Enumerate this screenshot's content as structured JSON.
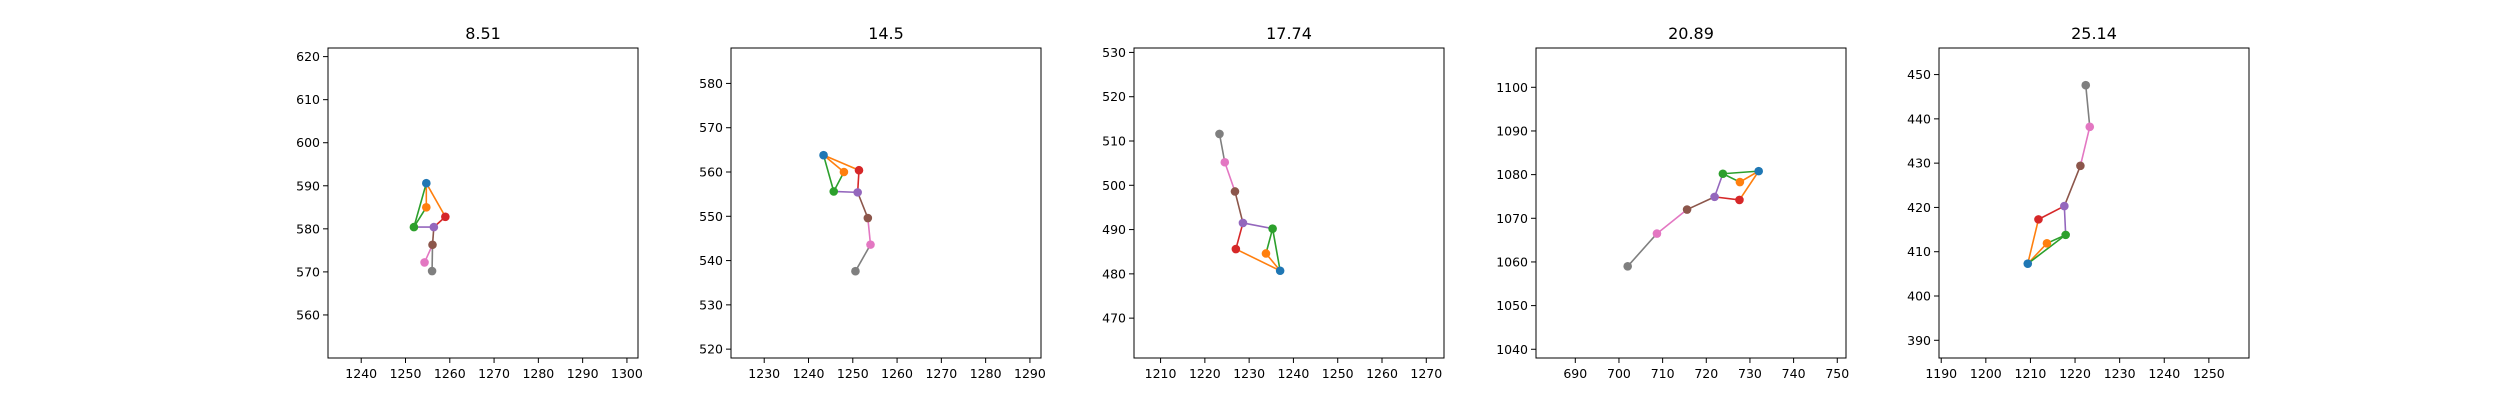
{
  "chart_data": [
    {
      "type": "scatter",
      "title": "8.51",
      "xlim": [
        1232.5,
        1302.5
      ],
      "ylim": [
        550,
        622
      ],
      "xticks": [
        1240,
        1250,
        1260,
        1270,
        1280,
        1290,
        1300
      ],
      "yticks": [
        560,
        570,
        580,
        590,
        600,
        610,
        620
      ],
      "points": [
        {
          "x": 1254.7,
          "y": 590.6,
          "color": "#1f77b4"
        },
        {
          "x": 1254.7,
          "y": 585.0,
          "color": "#ff7f0e"
        },
        {
          "x": 1251.9,
          "y": 580.4,
          "color": "#2ca02c"
        },
        {
          "x": 1259.0,
          "y": 582.8,
          "color": "#d62728"
        },
        {
          "x": 1256.4,
          "y": 580.4,
          "color": "#9467bd"
        },
        {
          "x": 1256.1,
          "y": 576.3,
          "color": "#8c564b"
        },
        {
          "x": 1254.3,
          "y": 572.2,
          "color": "#e377c2"
        },
        {
          "x": 1256.0,
          "y": 570.2,
          "color": "#7f7f7f"
        }
      ],
      "segments": [
        {
          "from": 0,
          "to": 1,
          "color": "#ff7f0e"
        },
        {
          "from": 0,
          "to": 2,
          "color": "#2ca02c"
        },
        {
          "from": 0,
          "to": 3,
          "color": "#ff7f0e"
        },
        {
          "from": 1,
          "to": 2,
          "color": "#2ca02c"
        },
        {
          "from": 2,
          "to": 4,
          "color": "#9467bd"
        },
        {
          "from": 3,
          "to": 4,
          "color": "#d62728"
        },
        {
          "from": 4,
          "to": 5,
          "color": "#8c564b"
        },
        {
          "from": 5,
          "to": 6,
          "color": "#e377c2"
        },
        {
          "from": 5,
          "to": 7,
          "color": "#7f7f7f"
        }
      ]
    },
    {
      "type": "scatter",
      "title": "14.5",
      "xlim": [
        1222.5,
        1292.5
      ],
      "ylim": [
        518,
        588
      ],
      "xticks": [
        1230,
        1240,
        1250,
        1260,
        1270,
        1280,
        1290
      ],
      "yticks": [
        520,
        530,
        540,
        550,
        560,
        570,
        580
      ],
      "points": [
        {
          "x": 1243.4,
          "y": 563.8,
          "color": "#1f77b4"
        },
        {
          "x": 1248.0,
          "y": 560.0,
          "color": "#ff7f0e"
        },
        {
          "x": 1245.7,
          "y": 555.6,
          "color": "#2ca02c"
        },
        {
          "x": 1251.4,
          "y": 560.4,
          "color": "#d62728"
        },
        {
          "x": 1251.1,
          "y": 555.4,
          "color": "#9467bd"
        },
        {
          "x": 1253.4,
          "y": 549.6,
          "color": "#8c564b"
        },
        {
          "x": 1254.0,
          "y": 543.6,
          "color": "#e377c2"
        },
        {
          "x": 1250.6,
          "y": 537.6,
          "color": "#7f7f7f"
        }
      ],
      "segments": [
        {
          "from": 0,
          "to": 1,
          "color": "#ff7f0e"
        },
        {
          "from": 0,
          "to": 2,
          "color": "#2ca02c"
        },
        {
          "from": 0,
          "to": 3,
          "color": "#ff7f0e"
        },
        {
          "from": 1,
          "to": 2,
          "color": "#2ca02c"
        },
        {
          "from": 2,
          "to": 4,
          "color": "#9467bd"
        },
        {
          "from": 3,
          "to": 4,
          "color": "#d62728"
        },
        {
          "from": 4,
          "to": 5,
          "color": "#8c564b"
        },
        {
          "from": 5,
          "to": 6,
          "color": "#e377c2"
        },
        {
          "from": 6,
          "to": 7,
          "color": "#7f7f7f"
        }
      ]
    },
    {
      "type": "scatter",
      "title": "17.74",
      "xlim": [
        1204,
        1274
      ],
      "ylim": [
        461,
        531
      ],
      "xticks": [
        1210,
        1220,
        1230,
        1240,
        1250,
        1260,
        1270
      ],
      "yticks": [
        470,
        480,
        490,
        500,
        510,
        520,
        530
      ],
      "points": [
        {
          "x": 1237.0,
          "y": 480.7,
          "color": "#1f77b4"
        },
        {
          "x": 1233.8,
          "y": 484.6,
          "color": "#ff7f0e"
        },
        {
          "x": 1235.3,
          "y": 490.2,
          "color": "#2ca02c"
        },
        {
          "x": 1227.0,
          "y": 485.6,
          "color": "#d62728"
        },
        {
          "x": 1228.6,
          "y": 491.5,
          "color": "#9467bd"
        },
        {
          "x": 1226.8,
          "y": 498.6,
          "color": "#8c564b"
        },
        {
          "x": 1224.5,
          "y": 505.2,
          "color": "#e377c2"
        },
        {
          "x": 1223.3,
          "y": 511.6,
          "color": "#7f7f7f"
        }
      ],
      "segments": [
        {
          "from": 0,
          "to": 1,
          "color": "#ff7f0e"
        },
        {
          "from": 0,
          "to": 2,
          "color": "#2ca02c"
        },
        {
          "from": 0,
          "to": 3,
          "color": "#ff7f0e"
        },
        {
          "from": 1,
          "to": 2,
          "color": "#2ca02c"
        },
        {
          "from": 2,
          "to": 4,
          "color": "#9467bd"
        },
        {
          "from": 3,
          "to": 4,
          "color": "#d62728"
        },
        {
          "from": 4,
          "to": 5,
          "color": "#8c564b"
        },
        {
          "from": 5,
          "to": 6,
          "color": "#e377c2"
        },
        {
          "from": 6,
          "to": 7,
          "color": "#7f7f7f"
        }
      ]
    },
    {
      "type": "scatter",
      "title": "20.89",
      "xlim": [
        681,
        752
      ],
      "ylim": [
        1038,
        1109
      ],
      "xticks": [
        690,
        700,
        710,
        720,
        730,
        740,
        750
      ],
      "yticks": [
        1040,
        1050,
        1060,
        1070,
        1080,
        1090,
        1100
      ],
      "points": [
        {
          "x": 732.0,
          "y": 1080.8,
          "color": "#1f77b4"
        },
        {
          "x": 727.7,
          "y": 1078.3,
          "color": "#ff7f0e"
        },
        {
          "x": 723.8,
          "y": 1080.2,
          "color": "#2ca02c"
        },
        {
          "x": 727.6,
          "y": 1074.2,
          "color": "#d62728"
        },
        {
          "x": 721.9,
          "y": 1074.9,
          "color": "#9467bd"
        },
        {
          "x": 715.6,
          "y": 1072.0,
          "color": "#8c564b"
        },
        {
          "x": 708.7,
          "y": 1066.5,
          "color": "#e377c2"
        },
        {
          "x": 702.0,
          "y": 1059.0,
          "color": "#7f7f7f"
        }
      ],
      "segments": [
        {
          "from": 0,
          "to": 1,
          "color": "#ff7f0e"
        },
        {
          "from": 0,
          "to": 2,
          "color": "#2ca02c"
        },
        {
          "from": 0,
          "to": 3,
          "color": "#ff7f0e"
        },
        {
          "from": 1,
          "to": 2,
          "color": "#2ca02c"
        },
        {
          "from": 2,
          "to": 4,
          "color": "#9467bd"
        },
        {
          "from": 3,
          "to": 4,
          "color": "#d62728"
        },
        {
          "from": 4,
          "to": 5,
          "color": "#8c564b"
        },
        {
          "from": 5,
          "to": 6,
          "color": "#e377c2"
        },
        {
          "from": 6,
          "to": 7,
          "color": "#7f7f7f"
        }
      ]
    },
    {
      "type": "scatter",
      "title": "25.14",
      "xlim": [
        1189.5,
        1259
      ],
      "ylim": [
        386,
        456
      ],
      "xticks": [
        1190,
        1200,
        1210,
        1220,
        1230,
        1240,
        1250
      ],
      "yticks": [
        390,
        400,
        410,
        420,
        430,
        440,
        450
      ],
      "points": [
        {
          "x": 1209.4,
          "y": 407.3,
          "color": "#1f77b4"
        },
        {
          "x": 1213.7,
          "y": 411.9,
          "color": "#ff7f0e"
        },
        {
          "x": 1217.9,
          "y": 413.8,
          "color": "#2ca02c"
        },
        {
          "x": 1211.8,
          "y": 417.3,
          "color": "#d62728"
        },
        {
          "x": 1217.6,
          "y": 420.3,
          "color": "#9467bd"
        },
        {
          "x": 1221.2,
          "y": 429.4,
          "color": "#8c564b"
        },
        {
          "x": 1223.3,
          "y": 438.2,
          "color": "#e377c2"
        },
        {
          "x": 1222.4,
          "y": 447.6,
          "color": "#7f7f7f"
        }
      ],
      "segments": [
        {
          "from": 0,
          "to": 1,
          "color": "#ff7f0e"
        },
        {
          "from": 0,
          "to": 2,
          "color": "#2ca02c"
        },
        {
          "from": 0,
          "to": 3,
          "color": "#ff7f0e"
        },
        {
          "from": 1,
          "to": 2,
          "color": "#2ca02c"
        },
        {
          "from": 2,
          "to": 4,
          "color": "#9467bd"
        },
        {
          "from": 3,
          "to": 4,
          "color": "#d62728"
        },
        {
          "from": 4,
          "to": 5,
          "color": "#8c564b"
        },
        {
          "from": 5,
          "to": 6,
          "color": "#e377c2"
        },
        {
          "from": 6,
          "to": 7,
          "color": "#7f7f7f"
        }
      ]
    }
  ]
}
